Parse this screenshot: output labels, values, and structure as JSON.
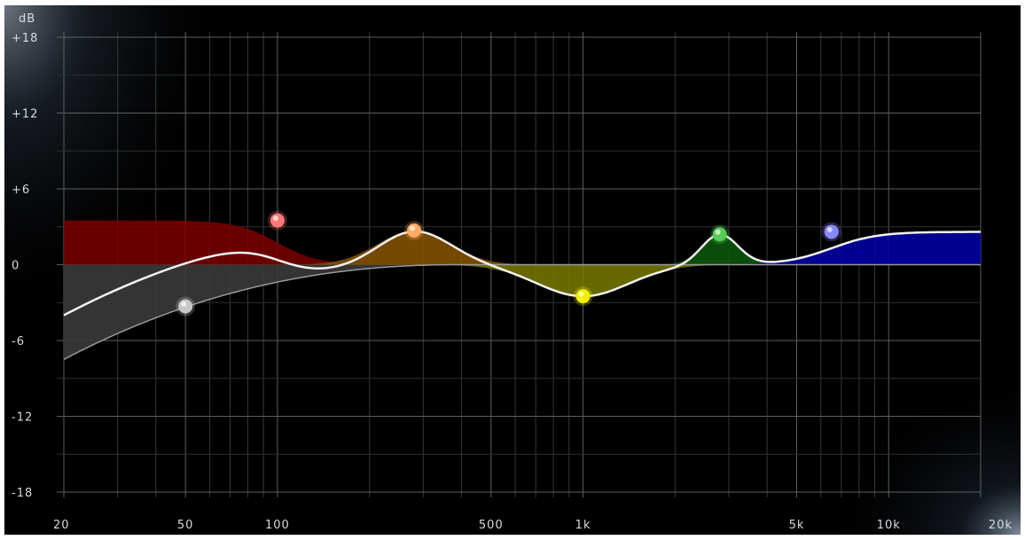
{
  "eq": {
    "db_unit": "dB",
    "db_ticks": [
      {
        "value": 18,
        "label": "+18"
      },
      {
        "value": 12,
        "label": "+12"
      },
      {
        "value": 6,
        "label": "+6"
      },
      {
        "value": 0,
        "label": "0"
      },
      {
        "value": -6,
        "label": "-6"
      },
      {
        "value": -12,
        "label": "-12"
      },
      {
        "value": -18,
        "label": "-18"
      }
    ],
    "freq_labels": [
      {
        "value": 20,
        "label": "20"
      },
      {
        "value": 50,
        "label": "50"
      },
      {
        "value": 100,
        "label": "100"
      },
      {
        "value": 500,
        "label": "500"
      },
      {
        "value": 1000,
        "label": "1k"
      },
      {
        "value": 5000,
        "label": "5k"
      },
      {
        "value": 10000,
        "label": "10k"
      },
      {
        "value": 20000,
        "label": "20k"
      }
    ],
    "freq_range": [
      20,
      20000
    ],
    "db_range": [
      -18,
      18
    ],
    "bands": [
      {
        "id": "hp",
        "type": "highpass",
        "freq": 50,
        "gain": -3.3,
        "color": "#c8c8c8",
        "fill": "#3a3a3a"
      },
      {
        "id": "low-shelf",
        "type": "lowshelf",
        "freq": 100,
        "gain": 3.5,
        "color": "#ff7777",
        "fill": "#7a0000"
      },
      {
        "id": "bell-1",
        "type": "bell",
        "freq": 280,
        "gain": 2.7,
        "q": 1.5,
        "color": "#ffaa66",
        "fill": "#8a5600"
      },
      {
        "id": "bell-2",
        "type": "bell",
        "freq": 1000,
        "gain": -2.5,
        "q": 1.2,
        "color": "#f0f000",
        "fill": "#7a7a00"
      },
      {
        "id": "bell-3",
        "type": "bell",
        "freq": 2800,
        "gain": 2.4,
        "q": 3,
        "color": "#55cc55",
        "fill": "#0b5a0b"
      },
      {
        "id": "high-shelf",
        "type": "highshelf",
        "freq": 6500,
        "gain": 2.6,
        "color": "#8888ff",
        "fill": "#0000aa"
      }
    ]
  }
}
